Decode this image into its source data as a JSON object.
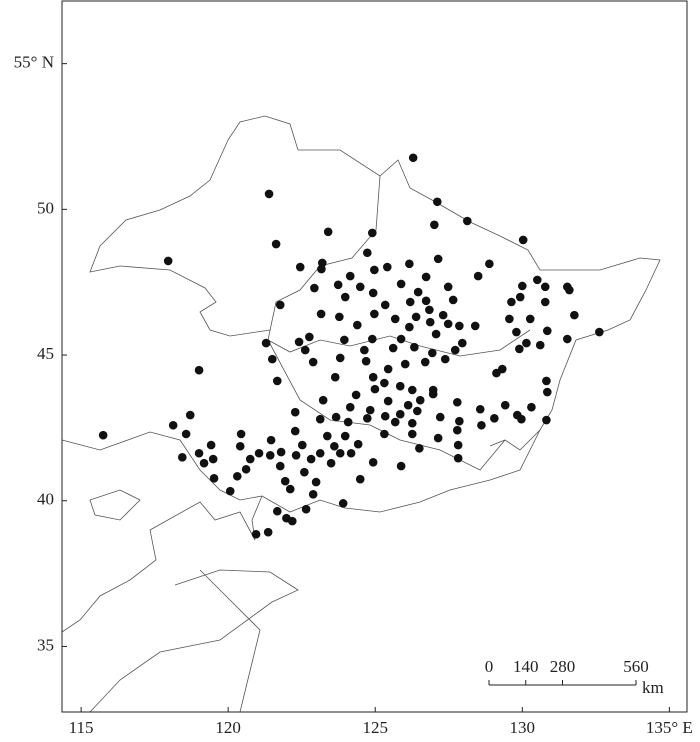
{
  "chart_data": {
    "type": "scatter",
    "xlim": [
      114.35,
      135.6
    ],
    "ylim": [
      32.75,
      57.15
    ],
    "xticks": [
      115,
      120,
      125,
      130,
      {
        "value": 135,
        "label": "135° E"
      }
    ],
    "yticks": [
      35,
      40,
      45,
      50,
      {
        "value": 55,
        "label": "55° N"
      }
    ],
    "color": "#111111",
    "x": [
      115.75,
      117.96,
      119.01,
      121.39,
      121.63,
      126.29,
      127.11,
      127.01,
      128.13,
      130.03,
      128.88,
      128.5,
      123.4,
      124.9,
      122.45,
      123.2,
      123.17,
      124.73,
      125.41,
      126.16,
      127.14,
      124.15,
      124.97,
      122.93,
      123.74,
      124.49,
      124.93,
      125.88,
      126.73,
      126.46,
      127.48,
      127.65,
      126.73,
      126.19,
      126.84,
      127.31,
      125.34,
      123.98,
      123.16,
      121.77,
      122.76,
      122.41,
      122.62,
      123.78,
      124.39,
      124.97,
      125.68,
      126.39,
      126.87,
      127.48,
      127.86,
      128.4,
      127.07,
      126.16,
      123.95,
      124.9,
      125.61,
      125.88,
      126.33,
      126.94,
      127.72,
      127.96,
      121.29,
      121.5,
      121.67,
      122.89,
      123.81,
      124.63,
      124.69,
      124.93,
      125.44,
      126.02,
      126.7,
      127.38,
      123.64,
      124.35,
      124.99,
      125.31,
      125.85,
      126.26,
      126.97,
      125.44,
      126.12,
      126.53,
      126.97,
      127.79,
      124.15,
      124.83,
      123.23,
      123.13,
      123.67,
      124.08,
      124.73,
      125.34,
      125.85,
      126.43,
      125.68,
      126.26,
      127.21,
      127.86,
      125.31,
      126.26,
      127.14,
      127.79,
      126.5,
      125.88,
      127.82,
      127.82,
      128.57,
      128.61,
      129.05,
      129.42,
      129.83,
      129.97,
      130.31,
      130.85,
      130.82,
      129.12,
      129.32,
      129.9,
      129.8,
      130.14,
      130.61,
      130.27,
      129.93,
      130.0,
      129.63,
      129.56,
      130.85,
      130.78,
      130.78,
      130.51,
      131.53,
      131.6,
      131.77,
      131.53,
      132.62,
      130.82,
      118.13,
      118.71,
      118.57,
      118.44,
      119.01,
      119.42,
      119.18,
      119.49,
      119.52,
      120.07,
      120.41,
      120.44,
      120.31,
      120.61,
      120.75,
      121.05,
      121.46,
      121.43,
      121.8,
      121.77,
      121.94,
      122.11,
      122.31,
      122.52,
      122.28,
      122.59,
      122.82,
      122.99,
      123.13,
      123.37,
      123.5,
      123.61,
      123.81,
      123.98,
      124.18,
      124.42,
      124.93,
      124.49,
      123.91,
      122.89,
      122.65,
      121.98,
      122.18,
      121.67,
      121.36,
      120.95,
      122.28
    ],
    "values": [
      42.25,
      48.23,
      44.48,
      50.53,
      48.81,
      51.77,
      50.26,
      49.47,
      49.6,
      48.95,
      48.13,
      47.71,
      49.23,
      49.19,
      48.02,
      48.16,
      47.95,
      48.51,
      48.02,
      48.13,
      48.3,
      47.71,
      47.92,
      47.3,
      47.41,
      47.34,
      47.13,
      47.44,
      47.68,
      47.16,
      47.34,
      46.89,
      46.86,
      46.82,
      46.55,
      46.37,
      46.72,
      46.99,
      46.41,
      46.72,
      45.62,
      45.45,
      45.17,
      46.31,
      46.03,
      46.41,
      46.24,
      46.31,
      46.13,
      46.07,
      46.0,
      46.0,
      45.72,
      45.96,
      45.52,
      45.55,
      45.24,
      45.55,
      45.27,
      45.07,
      45.17,
      45.41,
      45.41,
      44.86,
      44.11,
      44.76,
      44.9,
      45.17,
      44.79,
      44.24,
      44.52,
      44.69,
      44.76,
      44.86,
      44.24,
      43.63,
      43.83,
      44.04,
      43.93,
      43.8,
      43.8,
      43.42,
      43.28,
      43.45,
      43.66,
      43.38,
      43.21,
      43.11,
      43.45,
      42.8,
      42.87,
      42.7,
      42.83,
      42.9,
      42.97,
      43.08,
      42.7,
      42.66,
      42.87,
      42.73,
      42.29,
      42.29,
      42.15,
      42.42,
      41.8,
      41.19,
      41.91,
      41.46,
      43.14,
      42.59,
      42.83,
      43.28,
      42.94,
      42.8,
      43.21,
      43.73,
      42.77,
      44.38,
      44.52,
      45.21,
      45.79,
      45.41,
      45.34,
      46.24,
      46.99,
      47.37,
      46.82,
      46.24,
      45.83,
      46.82,
      47.34,
      47.58,
      47.34,
      47.23,
      46.37,
      45.55,
      45.79,
      44.11,
      42.59,
      42.94,
      42.29,
      41.49,
      41.63,
      41.91,
      41.29,
      41.43,
      40.77,
      40.33,
      41.87,
      42.29,
      40.84,
      41.08,
      41.43,
      41.63,
      42.08,
      41.56,
      41.67,
      41.19,
      40.67,
      40.4,
      41.56,
      41.91,
      42.39,
      40.98,
      41.43,
      40.64,
      41.63,
      42.22,
      41.29,
      41.87,
      41.63,
      42.22,
      41.63,
      41.94,
      41.32,
      40.74,
      39.91,
      40.22,
      39.71,
      39.4,
      39.3,
      39.64,
      38.92,
      38.85,
      43.04
    ],
    "scale_bar": {
      "ticks": [
        0,
        140,
        280,
        560
      ],
      "unit": "km"
    }
  }
}
